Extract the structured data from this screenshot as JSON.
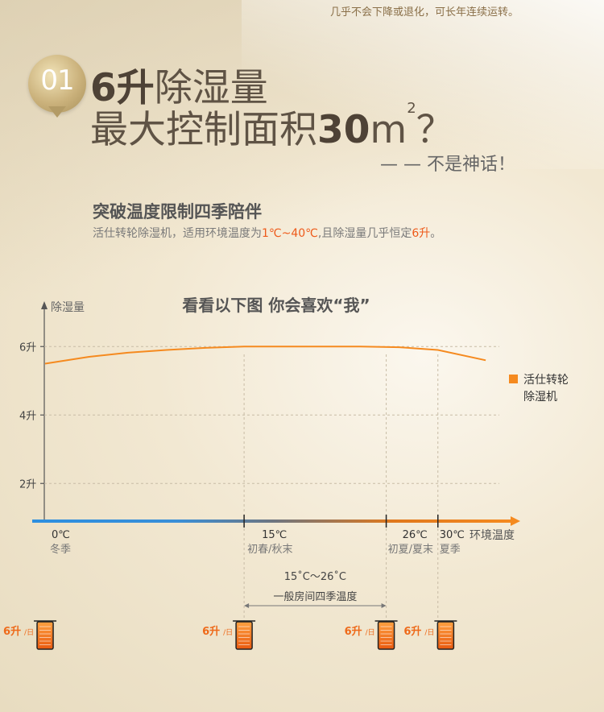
{
  "top_note": "几乎不会下降或退化，可长年连续运转。",
  "badge_number": "01",
  "headline": {
    "line1_bold": "6升",
    "line1_rest": "除湿量",
    "line2_text": "最大控制面积",
    "line2_bold": "30",
    "line2_unit": "m",
    "line2_sup": "2",
    "line2_end": "？",
    "tagline": "— — 不是神话！"
  },
  "section": {
    "title": "突破温度限制四季陪伴",
    "desc_part1": "活仕转轮除湿机，适用环境温度为",
    "desc_hl1": "1℃~40℃",
    "desc_part2": ",且除湿量几乎恒定",
    "desc_hl2": "6升",
    "desc_part3": "。"
  },
  "chart_data": {
    "type": "line",
    "title": "看看以下图 你会喜欢“我”",
    "ylabel": "除湿量",
    "xlabel": "环境温度",
    "y_ticks": [
      "2升",
      "4升",
      "6升"
    ],
    "y_tick_values": [
      2,
      4,
      6
    ],
    "ylim": [
      0.9,
      7.3
    ],
    "x_ticks": [
      {
        "temp": "0℃",
        "season": "冬季",
        "x": 0
      },
      {
        "temp": "15℃",
        "season": "初春/秋末",
        "x": 15
      },
      {
        "temp": "26℃",
        "season": "初夏/夏末",
        "x": 26
      },
      {
        "temp": "30℃",
        "season": "夏季",
        "x": 30
      }
    ],
    "xlim": [
      -1.4,
      36
    ],
    "series": [
      {
        "name": "活仕转轮除湿机",
        "name_line1": "活仕转轮",
        "name_line2": "除湿机",
        "color": "#f58a1f",
        "x": [
          -0.4,
          3,
          6,
          9,
          12,
          15,
          18,
          21,
          24,
          27,
          30,
          33.7
        ],
        "y": [
          5.5,
          5.7,
          5.82,
          5.9,
          5.96,
          6.0,
          6.0,
          6.0,
          6.0,
          5.98,
          5.9,
          5.6
        ]
      }
    ],
    "grid": "dashed",
    "legend": "right",
    "range_label": "15˚C～26˚C",
    "range_desc": "一般房间四季温度",
    "range_x": [
      15,
      26
    ],
    "axis_colors": [
      "#2d8fe0",
      "#6d7580",
      "#e0781c",
      "#f58a1f"
    ],
    "cup_label": "6升",
    "cup_unit": "/日"
  }
}
